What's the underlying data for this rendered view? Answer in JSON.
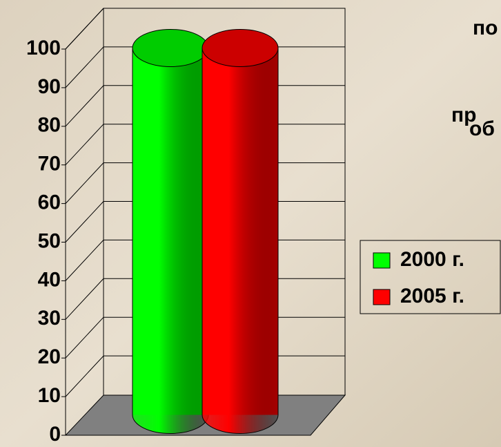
{
  "chart_data": {
    "type": "cylinder3d",
    "side_text": [
      "по",
      "пр",
      "об"
    ],
    "series": [
      {
        "name": "2000 г.",
        "color": "#00ff00",
        "values": [
          95
        ]
      },
      {
        "name": "2005 г.",
        "color": "#ff0000",
        "values": [
          95
        ]
      }
    ],
    "ylim": [
      0,
      100
    ],
    "yticks": [
      0,
      10,
      20,
      30,
      40,
      50,
      60,
      70,
      80,
      90,
      100
    ],
    "grid": true,
    "legend": "right"
  }
}
